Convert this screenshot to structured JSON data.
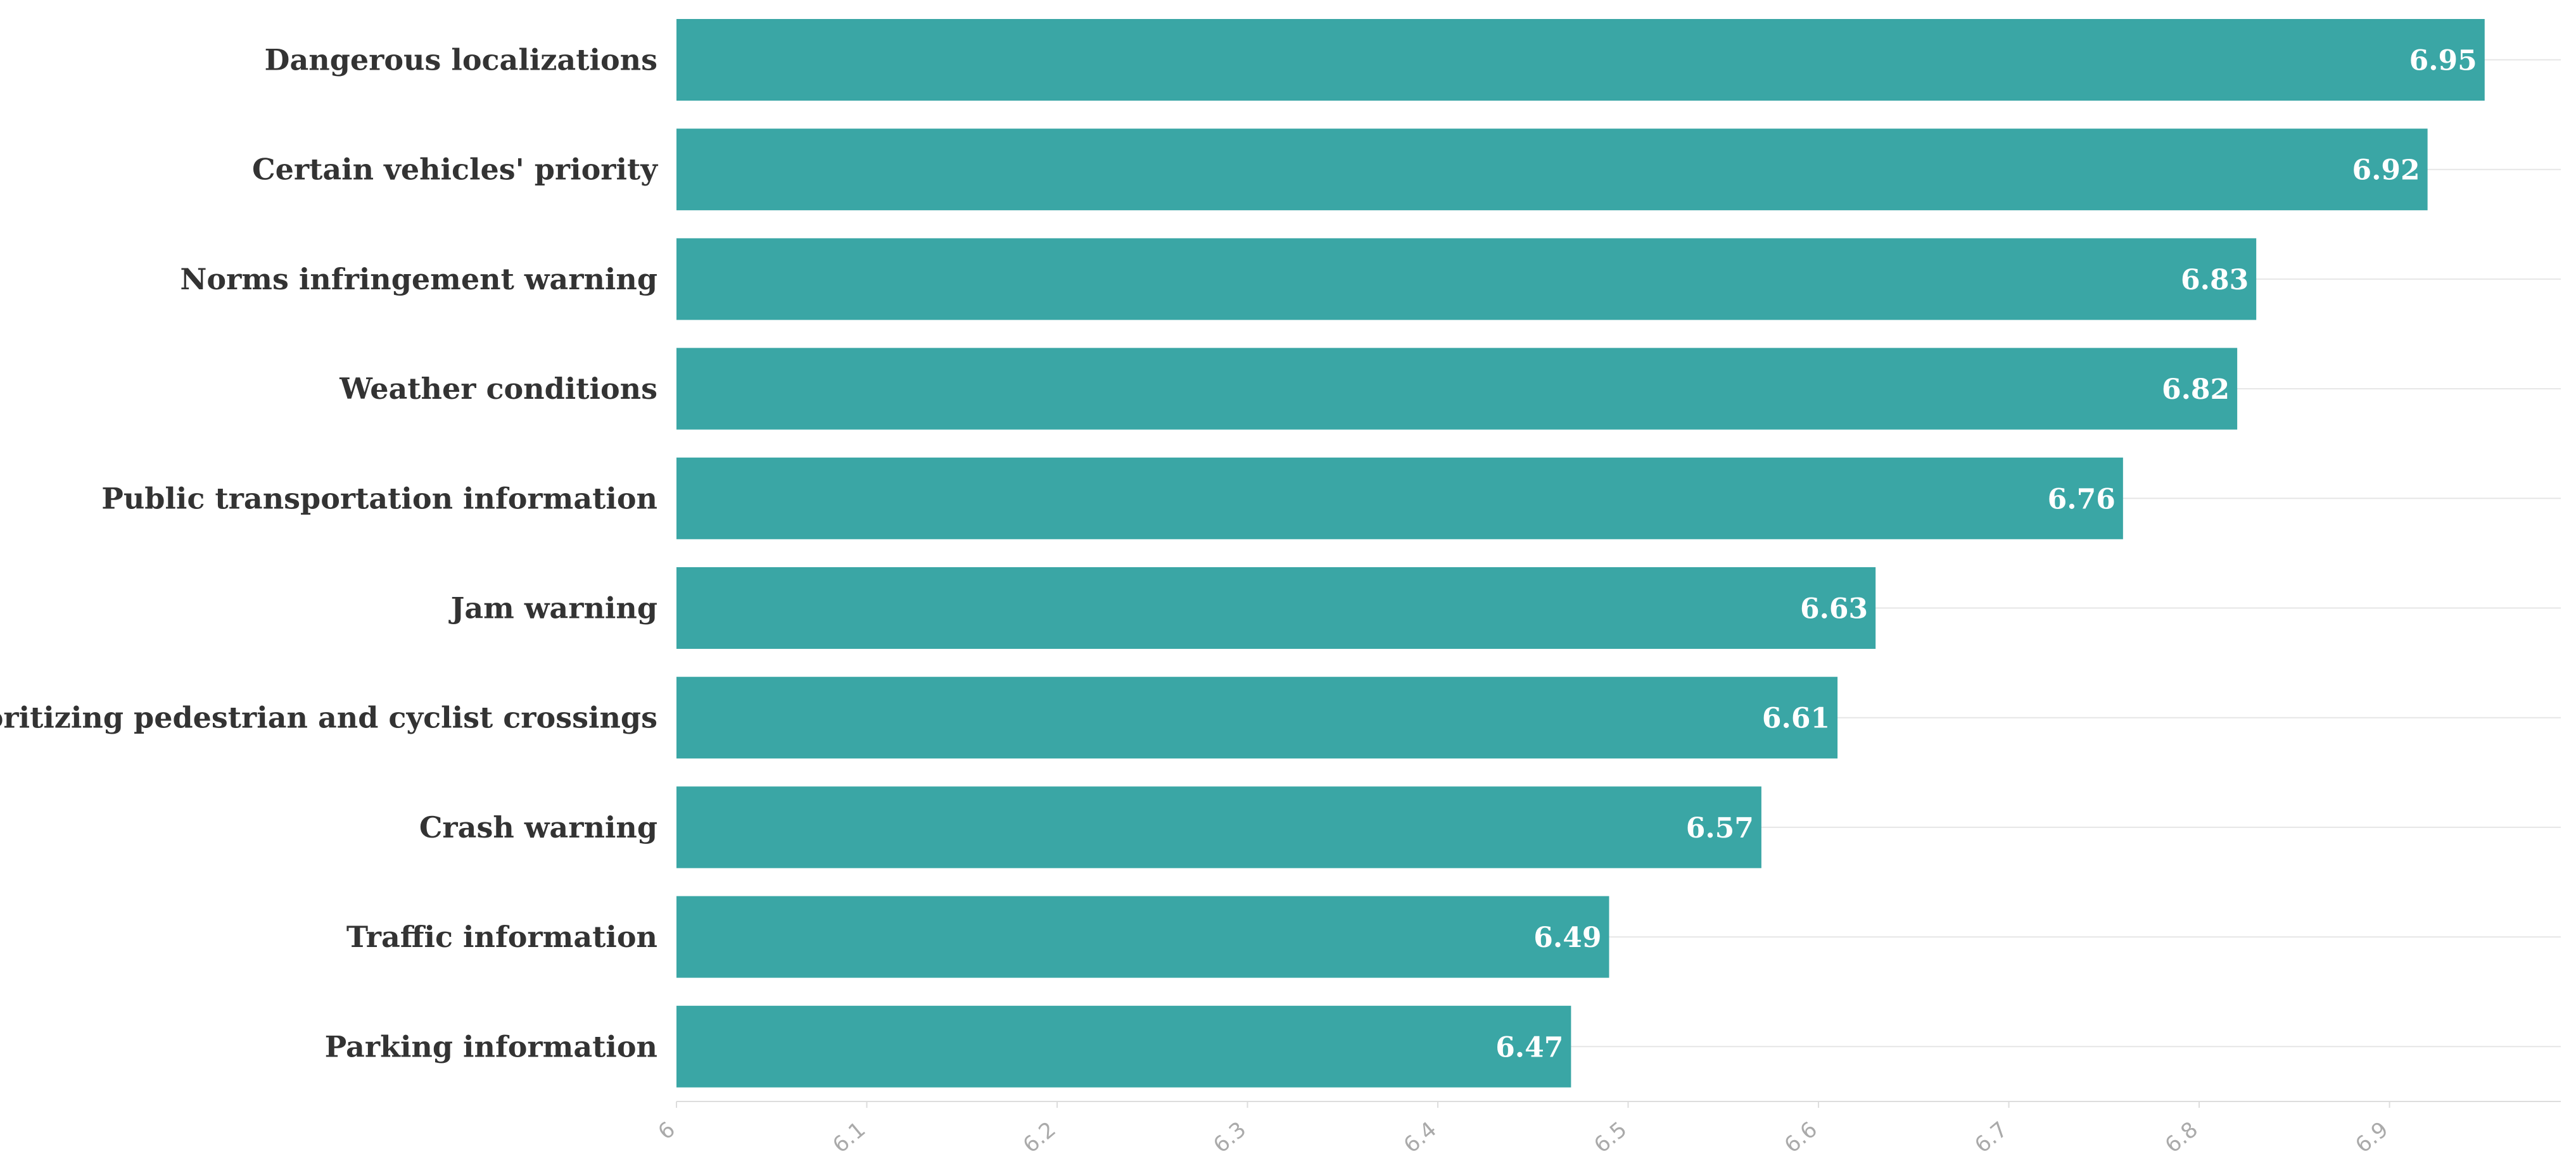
{
  "chart_data": {
    "type": "bar",
    "orientation": "horizontal",
    "categories": [
      "Dangerous localizations",
      "Certain vehicles' priority",
      "Norms infringement warning",
      "Weather conditions",
      "Public transportation information",
      "Jam warning",
      "Prioritizing pedestrian and cyclist crossings",
      "Crash warning",
      "Traffic information",
      "Parking information"
    ],
    "values": [
      6.95,
      6.92,
      6.83,
      6.82,
      6.76,
      6.63,
      6.61,
      6.57,
      6.49,
      6.47
    ],
    "value_labels": [
      "6.95",
      "6.92",
      "6.83",
      "6.82",
      "6.76",
      "6.63",
      "6.61",
      "6.57",
      "6.49",
      "6.47"
    ],
    "xticks": [
      "6",
      "6.1",
      "6.2",
      "6.3",
      "6.4",
      "6.5",
      "6.6",
      "6.7",
      "6.8",
      "6.9"
    ],
    "xlim": [
      6,
      6.99
    ],
    "grid": true,
    "legend": "none",
    "title": "",
    "xlabel": "",
    "ylabel": "",
    "colors": {
      "bar": "#3aa6a5",
      "bar_label": "#ffffff",
      "category_label": "#333333",
      "tick_label": "#aaaaaa",
      "grid": "#e6e6e6"
    }
  }
}
